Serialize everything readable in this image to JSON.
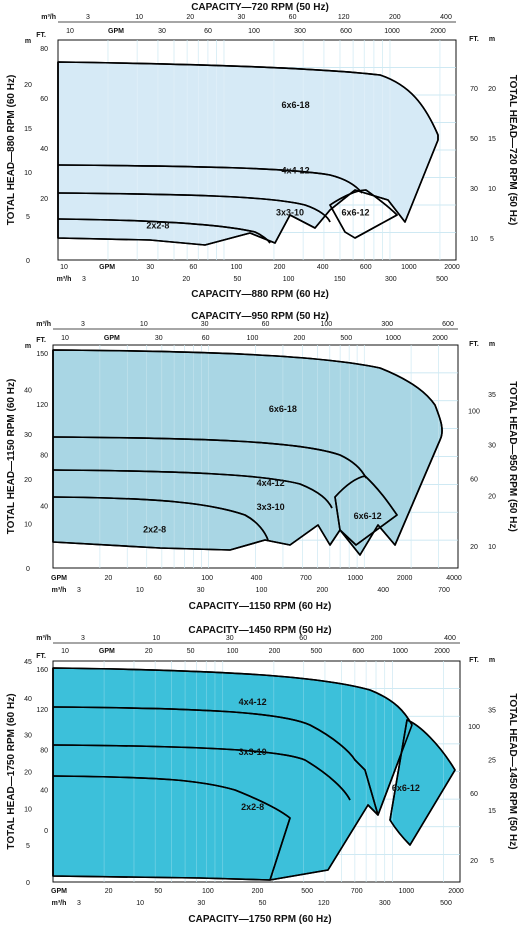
{
  "colors": {
    "panel_bg": [
      "#d6eaf6",
      "#a9d6e4",
      "#3cc0da"
    ],
    "grid": "#bfe2ef",
    "outline": "#000000",
    "axis": "#111111"
  },
  "chart_data": [
    {
      "type": "area",
      "top_title": "CAPACITY—720 RPM (50 Hz)",
      "bottom_title": "CAPACITY—880 RPM (60 Hz)",
      "left_title": "TOTAL HEAD—880 RPM (60 Hz)",
      "right_title": "TOTAL HEAD—720 RPM (50 Hz)",
      "x_scale": "log",
      "xlim_gpm": [
        10,
        2500
      ],
      "ylim_ft": [
        0,
        84
      ],
      "top_m3h_ticks": [
        "3",
        "10",
        "20",
        "30",
        "60",
        "120",
        "200",
        "400"
      ],
      "top_gpm_ticks": [
        "10",
        "GPM",
        "30",
        "60",
        "100",
        "300",
        "600",
        "1000",
        "2000"
      ],
      "bottom_gpm_ticks": [
        "10",
        "GPM",
        "30",
        "60",
        "100",
        "200",
        "400",
        "600",
        "1000",
        "2000"
      ],
      "bottom_m3h_ticks": [
        "3",
        "10",
        "20",
        "50",
        "100",
        "150",
        "300",
        "500"
      ],
      "left_ft_ticks": [
        "80",
        "60",
        "40",
        "20"
      ],
      "left_m_ticks": [
        "m",
        "20",
        "15",
        "10",
        "5",
        "0"
      ],
      "right_ft_ticks": [
        "FT.",
        "70",
        "50",
        "30",
        "10"
      ],
      "right_m_ticks": [
        "m",
        "20",
        "15",
        "10",
        "5"
      ],
      "pumps": [
        {
          "name": "6x6-18",
          "label_at": [
            270,
            58
          ]
        },
        {
          "name": "4x4-12",
          "label_at": [
            270,
            33
          ]
        },
        {
          "name": "3x3-10",
          "label_at": [
            250,
            17
          ]
        },
        {
          "name": "6x6-12",
          "label_at": [
            620,
            17
          ]
        },
        {
          "name": "2x2-8",
          "label_at": [
            40,
            12
          ]
        }
      ]
    },
    {
      "type": "area",
      "top_title": "CAPACITY—950 RPM (50 Hz)",
      "bottom_title": "CAPACITY—1150 RPM (60 Hz)",
      "left_title": "TOTAL HEAD—1150 RPM (60 Hz)",
      "right_title": "TOTAL HEAD—950 RPM (50 Hz)",
      "x_scale": "log",
      "xlim_gpm": [
        10,
        4000
      ],
      "ylim_ft": [
        0,
        150
      ],
      "top_m3h_ticks": [
        "3",
        "10",
        "30",
        "60",
        "100",
        "300",
        "600"
      ],
      "top_gpm_ticks": [
        "10",
        "GPM",
        "30",
        "60",
        "100",
        "200",
        "500",
        "1000",
        "2000"
      ],
      "bottom_gpm_ticks": [
        "GPM",
        "20",
        "60",
        "100",
        "400",
        "700",
        "1000",
        "2000",
        "4000"
      ],
      "bottom_m3h_ticks": [
        "3",
        "10",
        "30",
        "100",
        "200",
        "400",
        "700"
      ],
      "left_ft_ticks": [
        "150",
        "120",
        "80",
        "40"
      ],
      "left_m_ticks": [
        "m",
        "40",
        "30",
        "20",
        "10",
        "0"
      ],
      "right_ft_ticks": [
        "FT.",
        "100",
        "60",
        "20"
      ],
      "right_m_ticks": [
        "m",
        "35",
        "30",
        "20",
        "10"
      ],
      "pumps": [
        {
          "name": "6x6-18",
          "label_at": [
            300,
            105
          ]
        },
        {
          "name": "4x4-12",
          "label_at": [
            250,
            55
          ]
        },
        {
          "name": "3x3-10",
          "label_at": [
            250,
            39
          ]
        },
        {
          "name": "6x6-12",
          "label_at": [
            1050,
            33
          ]
        },
        {
          "name": "2x2-8",
          "label_at": [
            45,
            24
          ]
        }
      ]
    },
    {
      "type": "area",
      "top_title": "CAPACITY—1450 RPM (50 Hz)",
      "bottom_title": "CAPACITY—1750 RPM (60 Hz)",
      "left_title": "TOTAL HEAD—1750 RPM (60 Hz)",
      "right_title": "TOTAL HEAD—1450 RPM (50 Hz)",
      "x_scale": "log",
      "xlim_gpm": [
        10,
        2500
      ],
      "ylim_ft": [
        0,
        160
      ],
      "top_m3h_ticks": [
        "3",
        "10",
        "30",
        "60",
        "200",
        "400"
      ],
      "top_gpm_ticks": [
        "10",
        "GPM",
        "20",
        "50",
        "100",
        "200",
        "500",
        "600",
        "1000",
        "2000"
      ],
      "bottom_gpm_ticks": [
        "GPM",
        "20",
        "50",
        "100",
        "200",
        "500",
        "700",
        "1000",
        "2000"
      ],
      "bottom_m3h_ticks": [
        "3",
        "10",
        "30",
        "50",
        "120",
        "300",
        "500"
      ],
      "left_ft_ticks": [
        "160",
        "120",
        "80",
        "40",
        "0"
      ],
      "left_m_ticks": [
        "45",
        "40",
        "30",
        "20",
        "10",
        "5",
        "0"
      ],
      "right_ft_ticks": [
        "FT.",
        "100",
        "60",
        "20"
      ],
      "right_m_ticks": [
        "m",
        "35",
        "25",
        "15",
        "5"
      ],
      "pumps": [
        {
          "name": "4x4-12",
          "label_at": [
            150,
            128
          ]
        },
        {
          "name": "3x3-10",
          "label_at": [
            150,
            92
          ]
        },
        {
          "name": "6x6-12",
          "label_at": [
            1200,
            66
          ]
        },
        {
          "name": "2x2-8",
          "label_at": [
            150,
            52
          ]
        }
      ]
    }
  ]
}
